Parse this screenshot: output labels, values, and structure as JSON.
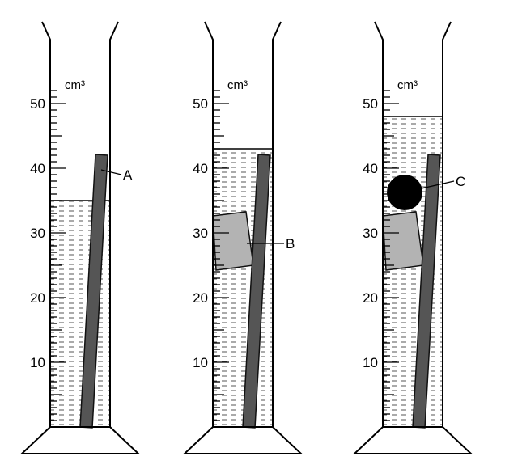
{
  "unit": "cm³",
  "scale_labels": [
    "10",
    "20",
    "30",
    "40",
    "50"
  ],
  "cylinders": [
    {
      "liquid_level_cm3": 35,
      "objects": [
        "rod"
      ],
      "labels": [
        {
          "target": "rod",
          "text": "A"
        }
      ]
    },
    {
      "liquid_level_cm3": 43,
      "objects": [
        "rod",
        "block"
      ],
      "labels": [
        {
          "target": "block",
          "text": "B"
        }
      ]
    },
    {
      "liquid_level_cm3": 48,
      "objects": [
        "rod",
        "block",
        "ball"
      ],
      "labels": [
        {
          "target": "ball",
          "text": "C"
        }
      ]
    }
  ],
  "colors": {
    "rod": "#555555",
    "block": "#b3b3b3",
    "ball": "#000000",
    "liquid_dash": "#555555"
  }
}
